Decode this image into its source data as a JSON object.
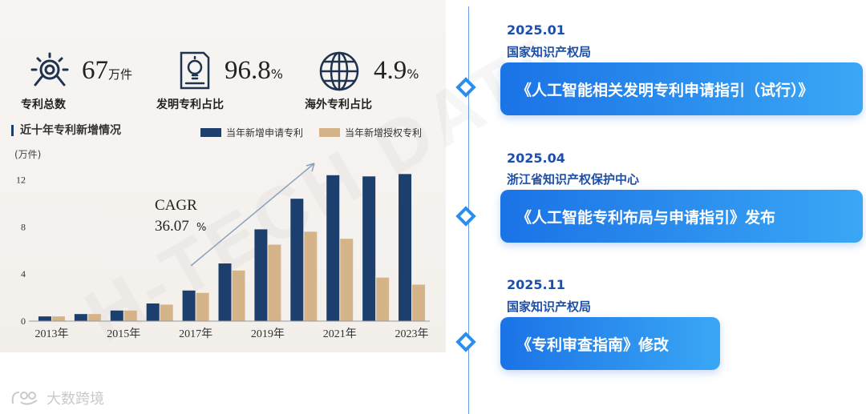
{
  "stats": [
    {
      "icon": "patent-search-icon",
      "value": "67",
      "unit": "万件",
      "label": "专利总数"
    },
    {
      "icon": "lightbulb-document-icon",
      "value": "96.8",
      "unit": "%",
      "label": "发明专利占比"
    },
    {
      "icon": "globe-icon",
      "value": "4.9",
      "unit": "%",
      "label": "海外专利占比"
    }
  ],
  "chart_data": {
    "type": "bar",
    "title": "近十年专利新增情况",
    "ylabel": "(万件)",
    "ylim": [
      0,
      13
    ],
    "yticks": [
      0,
      4,
      8,
      12
    ],
    "categories": [
      "2013年",
      "2014年",
      "2015年",
      "2016年",
      "2017年",
      "2018年",
      "2019年",
      "2020年",
      "2021年",
      "2022年",
      "2023年"
    ],
    "xtick_labels": [
      "2013年",
      "",
      "2015年",
      "",
      "2017年",
      "",
      "2019年",
      "",
      "2021年",
      "",
      "2023年"
    ],
    "series": [
      {
        "name": "当年新增申请专利",
        "color": "#1c3f6e",
        "values": [
          0.4,
          0.6,
          0.9,
          1.5,
          2.6,
          4.9,
          7.8,
          10.4,
          12.4,
          12.3,
          12.5
        ]
      },
      {
        "name": "当年新增授权专利",
        "color": "#d6b48a",
        "values": [
          0.4,
          0.6,
          0.9,
          1.4,
          2.4,
          4.3,
          6.5,
          7.6,
          7.0,
          3.7,
          3.1
        ]
      }
    ],
    "annotation": {
      "label": "CAGR",
      "value": "36.07",
      "unit": "%"
    },
    "grid": false,
    "legend": "top"
  },
  "timeline": [
    {
      "date": "2025.01",
      "org": "国家知识产权局",
      "text": "《人工智能相关发明专利申请指引（试行）》"
    },
    {
      "date": "2025.04",
      "org": "浙江省知识产权保护中心",
      "text": "《人工智能专利布局与申请指引》发布"
    },
    {
      "date": "2025.11",
      "org": "国家知识产权局",
      "text": "《专利审查指南》修改"
    }
  ],
  "watermark": "H-TECH DATA",
  "logo": {
    "text": "大数跨境",
    "icon": "logo-icon"
  }
}
